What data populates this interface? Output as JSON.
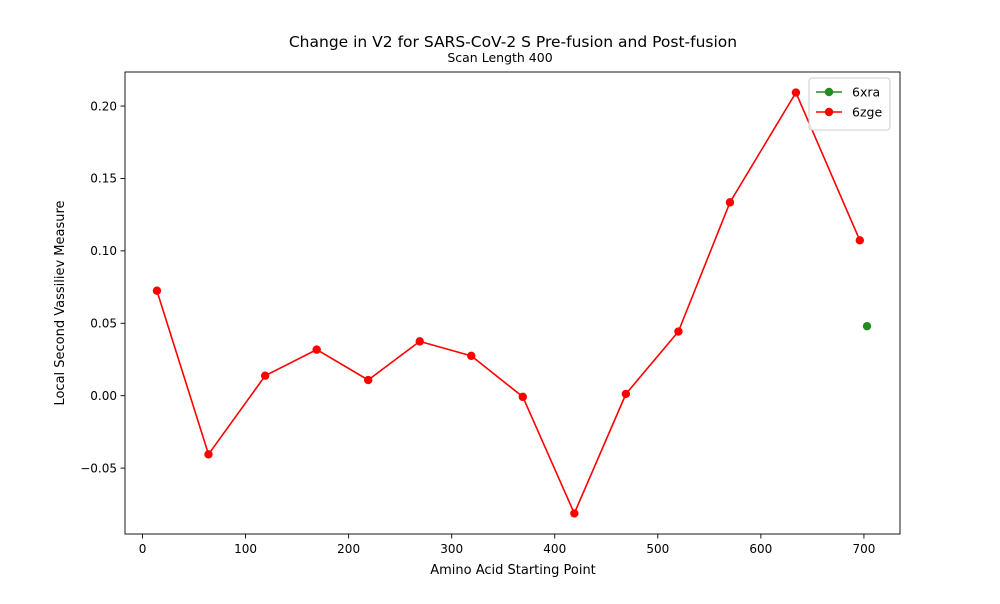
{
  "chart_data": {
    "type": "line",
    "title": "Change in V2 for SARS-CoV-2 S Pre-fusion and Post-fusion",
    "subtitle": "Scan Length 400",
    "xlabel": "Amino Acid Starting Point",
    "ylabel": "Local Second Vassiliev Measure",
    "xlim": [
      -17,
      735
    ],
    "ylim": [
      -0.0955,
      0.2235
    ],
    "x_ticks": [
      0,
      100,
      200,
      300,
      400,
      500,
      600,
      700
    ],
    "y_ticks": [
      -0.05,
      0.0,
      0.05,
      0.1,
      0.15,
      0.2
    ],
    "y_tick_labels": [
      "−0.05",
      "0.00",
      "0.05",
      "0.10",
      "0.15",
      "0.20"
    ],
    "grid": false,
    "legend_position": "top-right",
    "series": [
      {
        "name": "6xra",
        "color": "#228b22",
        "x": [
          703
        ],
        "y": [
          0.048
        ]
      },
      {
        "name": "6zge",
        "color": "#ff0000",
        "x": [
          14,
          64,
          119,
          169,
          219,
          269,
          319,
          369,
          419,
          469,
          520,
          570,
          634,
          696
        ],
        "y": [
          0.0725,
          -0.0405,
          0.0138,
          0.0318,
          0.0108,
          0.0375,
          0.0275,
          -0.0008,
          -0.0813,
          0.0012,
          0.0443,
          0.1335,
          0.2093,
          0.1073
        ]
      }
    ]
  }
}
